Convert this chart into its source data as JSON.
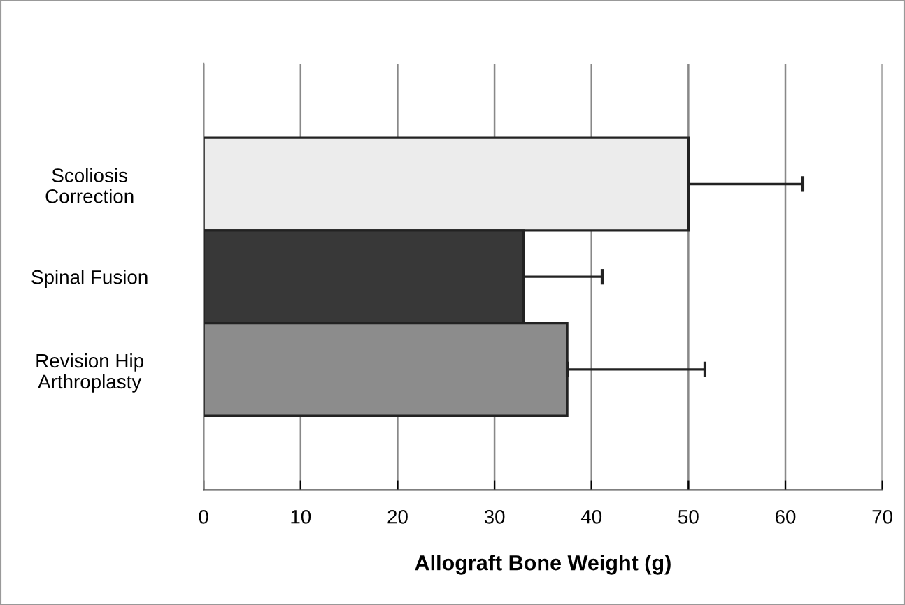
{
  "chart_data": {
    "type": "bar",
    "orientation": "horizontal",
    "xlabel": "Allograft Bone Weight (g)",
    "categories": [
      "Scoliosis\nCorrection",
      "Spinal Fusion",
      "Revision Hip\nArthroplasty"
    ],
    "values": [
      50,
      33,
      37.5
    ],
    "colors": [
      "#ececec",
      "#383838",
      "#8c8c8c"
    ],
    "errors": [
      [
        50,
        61.8
      ],
      [
        33,
        41.1
      ],
      [
        37.5,
        51.7
      ]
    ],
    "xlim": [
      0,
      70
    ],
    "xticks": [
      0,
      10,
      20,
      30,
      40,
      50,
      60,
      70
    ],
    "grid": "x"
  }
}
